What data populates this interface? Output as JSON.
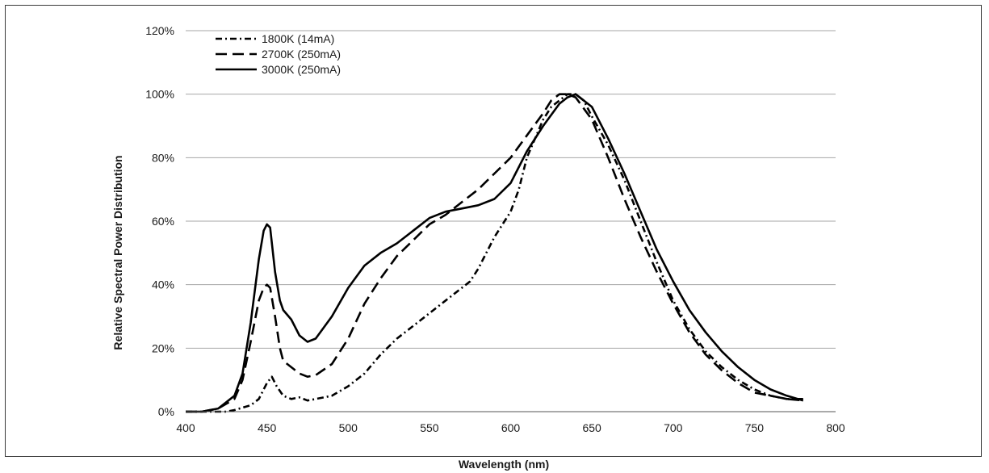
{
  "chart_data": {
    "type": "line",
    "xlabel": "Wavelength (nm)",
    "ylabel": "Relative Spectral Power Distribution",
    "xlim": [
      400,
      800
    ],
    "ylim": [
      0,
      120
    ],
    "x_ticks": [
      "400",
      "450",
      "500",
      "550",
      "600",
      "650",
      "700",
      "750",
      "800"
    ],
    "y_ticks": [
      "0%",
      "20%",
      "40%",
      "60%",
      "80%",
      "100%",
      "120%"
    ],
    "grid": "horizontal",
    "legend_position": "top-left",
    "series": [
      {
        "name": "1800K (14mA)",
        "style": "dash-dot",
        "x": [
          400,
          425,
          430,
          440,
          445,
          450,
          453,
          456,
          460,
          465,
          470,
          475,
          480,
          490,
          500,
          510,
          520,
          530,
          540,
          550,
          560,
          570,
          575,
          580,
          590,
          600,
          605,
          610,
          620,
          625,
          630,
          635,
          640,
          645,
          650,
          660,
          670,
          680,
          690,
          700,
          710,
          720,
          730,
          740,
          750,
          760,
          770,
          780
        ],
        "y": [
          0,
          0,
          0.5,
          2,
          4,
          9,
          11,
          8,
          5,
          4,
          4.5,
          3.5,
          4,
          5,
          8,
          12,
          18,
          23,
          27,
          31,
          35,
          39,
          41,
          45,
          55,
          63,
          70,
          80,
          92,
          96,
          98,
          100,
          100,
          98,
          93,
          84,
          73,
          60,
          47,
          35,
          26,
          19,
          14,
          10,
          7,
          5,
          4,
          4
        ]
      },
      {
        "name": "2700K (250mA)",
        "style": "dashed",
        "x": [
          400,
          410,
          420,
          430,
          435,
          440,
          445,
          448,
          450,
          452,
          455,
          458,
          460,
          465,
          470,
          475,
          480,
          490,
          500,
          510,
          520,
          530,
          540,
          550,
          560,
          570,
          580,
          590,
          600,
          610,
          620,
          625,
          630,
          635,
          640,
          650,
          660,
          670,
          680,
          690,
          700,
          710,
          720,
          730,
          740,
          750,
          760,
          770,
          780
        ],
        "y": [
          0,
          0,
          1,
          4,
          10,
          22,
          35,
          39,
          40,
          39,
          30,
          20,
          16,
          14,
          12,
          11,
          11.5,
          15,
          23,
          34,
          42,
          49,
          54,
          59,
          62,
          66,
          70,
          75,
          80,
          87,
          94,
          98,
          100,
          100,
          99,
          92,
          80,
          67,
          55,
          44,
          34,
          25,
          18,
          13,
          9,
          6,
          5,
          4,
          3.5
        ]
      },
      {
        "name": "3000K (250mA)",
        "style": "solid",
        "x": [
          400,
          410,
          420,
          430,
          435,
          440,
          445,
          448,
          450,
          452,
          455,
          458,
          460,
          465,
          470,
          475,
          480,
          490,
          500,
          510,
          520,
          530,
          540,
          550,
          560,
          570,
          580,
          590,
          600,
          610,
          620,
          630,
          635,
          640,
          650,
          660,
          670,
          680,
          690,
          700,
          710,
          720,
          730,
          740,
          750,
          760,
          770,
          780
        ],
        "y": [
          0,
          0,
          1,
          5,
          12,
          28,
          48,
          57,
          59,
          58,
          44,
          35,
          32,
          29,
          24,
          22,
          23,
          30,
          39,
          46,
          50,
          53,
          57,
          61,
          63,
          64,
          65,
          67,
          72,
          82,
          90,
          97,
          99,
          100,
          96,
          86,
          75,
          63,
          51,
          41,
          32,
          25,
          19,
          14,
          10,
          7,
          5,
          3.5
        ]
      }
    ]
  }
}
